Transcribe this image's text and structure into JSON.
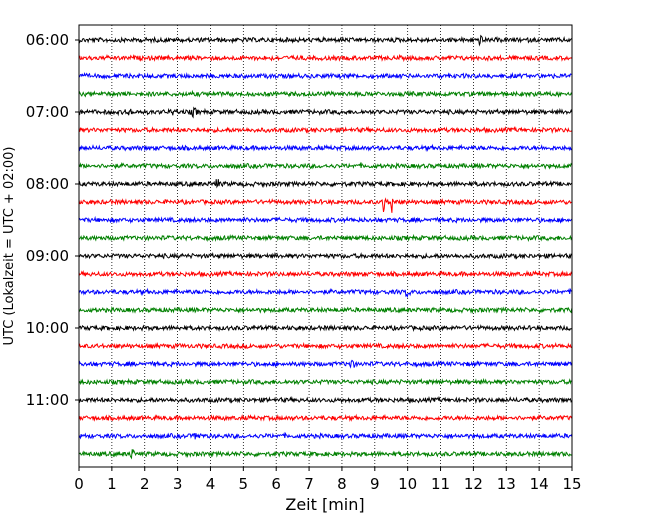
{
  "chart_data": {
    "type": "line",
    "title": "",
    "xlabel": "Zeit  [min]",
    "ylabel": "UTC (Lokalzeit = UTC + 02:00)",
    "xlim": [
      0,
      15
    ],
    "x_ticks": [
      "0",
      "1",
      "2",
      "3",
      "4",
      "5",
      "6",
      "7",
      "8",
      "9",
      "10",
      "11",
      "12",
      "13",
      "14",
      "15"
    ],
    "y_tick_labels": [
      "06:00",
      "07:00",
      "08:00",
      "09:00",
      "10:00",
      "11:00"
    ],
    "grid": "vertical dotted",
    "trace_interval_minutes": 15,
    "trace_start": "06:00",
    "trace_count": 24,
    "colors": [
      "#000000",
      "#ff0000",
      "#0000ff",
      "#008000"
    ],
    "events": [
      {
        "trace": "06:00",
        "minute": 12.2,
        "amplitude": "small"
      },
      {
        "trace": "07:00",
        "minute": 1.5,
        "amplitude": "small"
      },
      {
        "trace": "07:00",
        "minute": 2.9,
        "amplitude": "small"
      },
      {
        "trace": "07:00",
        "minute": 3.5,
        "amplitude": "small"
      },
      {
        "trace": "08:00",
        "minute": 4.2,
        "amplitude": "small"
      },
      {
        "trace": "08:15",
        "minute": 9.3,
        "amplitude": "large"
      },
      {
        "trace": "08:15",
        "minute": 9.5,
        "amplitude": "large"
      },
      {
        "trace": "09:30",
        "minute": 10.0,
        "amplitude": "small"
      },
      {
        "trace": "10:30",
        "minute": 8.3,
        "amplitude": "small"
      },
      {
        "trace": "11:30",
        "minute": 3.6,
        "amplitude": "small"
      },
      {
        "trace": "11:45",
        "minute": 1.6,
        "amplitude": "small"
      }
    ]
  }
}
